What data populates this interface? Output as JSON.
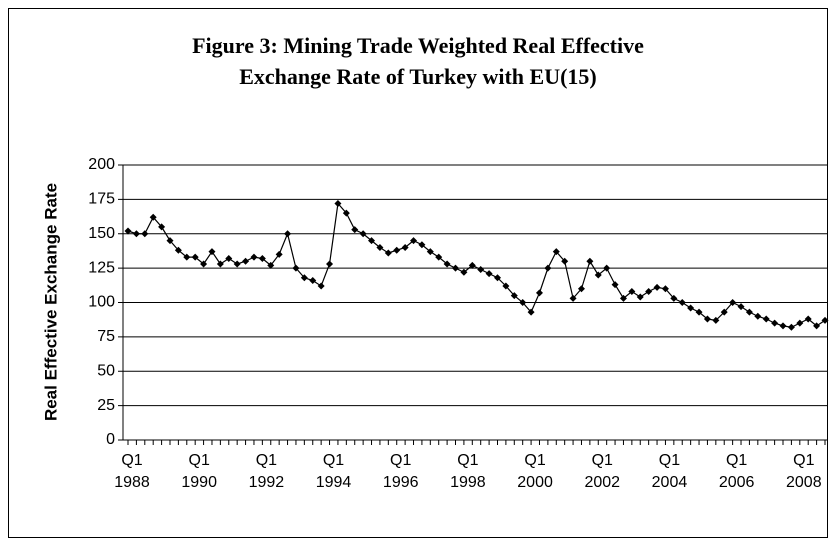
{
  "chart_data": {
    "type": "line",
    "title": "Figure 3: Mining Trade Weighted Real Effective\nExchange Rate of Turkey with EU(15)",
    "y_label": "Real Effective Exchange Rate",
    "categories": [
      "Q1\n1988",
      null,
      null,
      null,
      null,
      null,
      null,
      null,
      "Q1\n1990",
      null,
      null,
      null,
      null,
      null,
      null,
      null,
      "Q1\n1992",
      null,
      null,
      null,
      null,
      null,
      null,
      null,
      "Q1\n1994",
      null,
      null,
      null,
      null,
      null,
      null,
      null,
      "Q1\n1996",
      null,
      null,
      null,
      null,
      null,
      null,
      null,
      "Q1\n1998",
      null,
      null,
      null,
      null,
      null,
      null,
      null,
      "Q1\n2000",
      null,
      null,
      null,
      null,
      null,
      null,
      null,
      "Q1\n2002",
      null,
      null,
      null,
      null,
      null,
      null,
      null,
      "Q1\n2004",
      null,
      null,
      null,
      null,
      null,
      null,
      null,
      "Q1\n2006",
      null,
      null,
      null,
      null,
      null,
      null,
      null,
      "Q1\n2008",
      null,
      null,
      null
    ],
    "values": [
      152,
      150,
      150,
      162,
      155,
      145,
      138,
      133,
      133,
      128,
      137,
      128,
      132,
      128,
      130,
      133,
      132,
      127,
      135,
      150,
      125,
      118,
      116,
      112,
      128,
      172,
      165,
      153,
      150,
      145,
      140,
      136,
      138,
      140,
      145,
      142,
      137,
      133,
      128,
      125,
      122,
      127,
      124,
      121,
      118,
      112,
      105,
      100,
      93,
      107,
      125,
      137,
      130,
      103,
      110,
      130,
      120,
      125,
      113,
      103,
      108,
      104,
      108,
      111,
      110,
      103,
      100,
      96,
      93,
      88,
      87,
      93,
      100,
      97,
      93,
      90,
      88,
      85,
      83,
      82,
      85,
      88,
      83,
      87
    ],
    "color": "#000000",
    "ylim": [
      0,
      200
    ],
    "yticks": [
      0,
      25,
      50,
      75,
      100,
      125,
      150,
      175,
      200
    ],
    "grid": true
  }
}
